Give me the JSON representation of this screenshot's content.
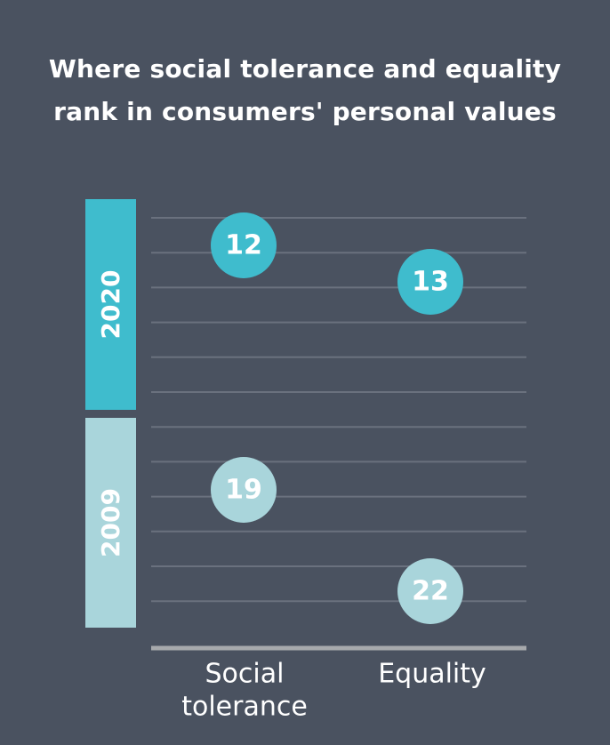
{
  "title_lines": [
    "Where social tolerance and equality",
    "rank in consumers' personal values"
  ],
  "colors": {
    "background": "#4a5260",
    "year_2020": "#3fbccd",
    "year_2009": "#a9d5db",
    "gridline": "#6a717e",
    "baseline": "#a7a9ac",
    "text": "#ffffff"
  },
  "chart_data": {
    "type": "scatter",
    "title": "Where social tolerance and equality rank in consumers' personal values",
    "categories": [
      "Social tolerance",
      "Equality"
    ],
    "category_label_lines": [
      [
        "Social",
        "tolerance"
      ],
      [
        "Equality"
      ]
    ],
    "y_axis": "rank",
    "y_inverted": true,
    "groups": [
      {
        "name": "2020",
        "ranks": [
          12,
          13
        ]
      },
      {
        "name": "2009",
        "ranks": [
          19,
          22
        ]
      }
    ],
    "series": [
      {
        "name": "2020",
        "values": [
          12,
          13
        ]
      },
      {
        "name": "2009",
        "values": [
          19,
          22
        ]
      }
    ],
    "grid": true
  }
}
